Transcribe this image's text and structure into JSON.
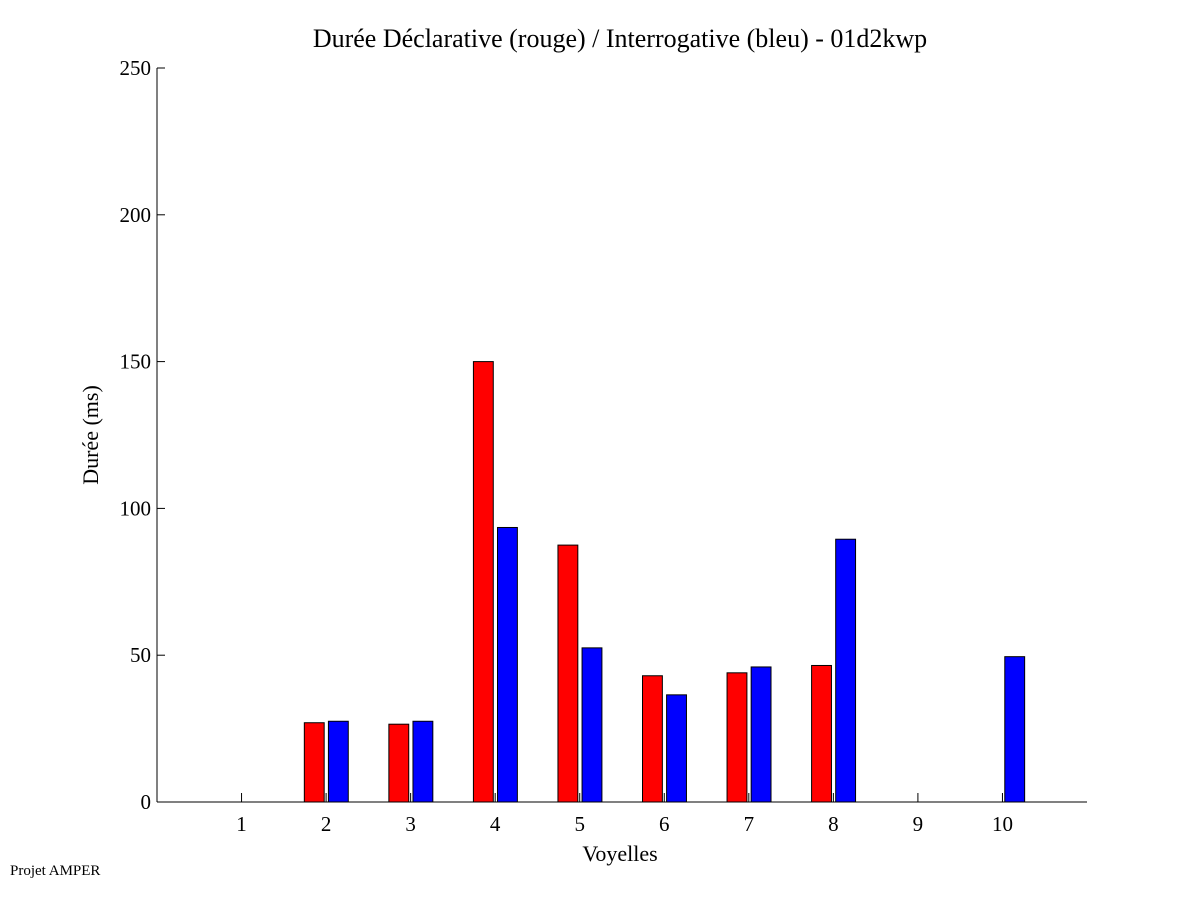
{
  "footer": {
    "text": "Projet AMPER"
  },
  "chart_data": {
    "type": "bar",
    "title": "Durée Déclarative (rouge) / Interrogative (bleu) - 01d2kwp",
    "xlabel": "Voyelles",
    "ylabel": "Durée (ms)",
    "categories": [
      "1",
      "2",
      "3",
      "4",
      "5",
      "6",
      "7",
      "8",
      "9",
      "10"
    ],
    "ylim": [
      0,
      250
    ],
    "yticks": [
      0,
      50,
      100,
      150,
      200,
      250
    ],
    "xlim": [
      0,
      11
    ],
    "grid": false,
    "series": [
      {
        "color": "#ff0000",
        "values": [
          0,
          27,
          26.5,
          150,
          87.5,
          43,
          44,
          46.5,
          0,
          0
        ]
      },
      {
        "color": "#0000ff",
        "values": [
          0,
          27.5,
          27.5,
          93.5,
          52.5,
          36.5,
          46,
          89.5,
          0,
          49.5
        ]
      }
    ]
  }
}
